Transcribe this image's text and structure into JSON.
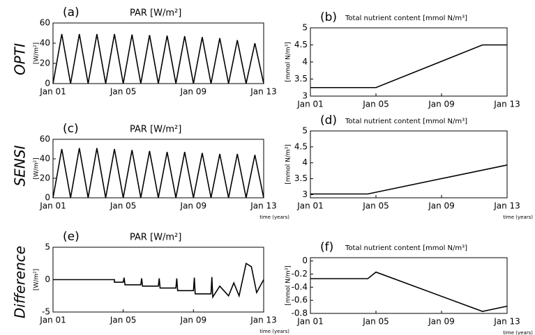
{
  "row_labels": [
    "OPTI",
    "SENSI",
    "Difference"
  ],
  "chart_data": [
    {
      "type": "line",
      "panel": "(a)",
      "title": "PAR [W/m²]",
      "ylabel": "[W/m²]",
      "x": [
        0,
        0.25,
        0.5,
        0.75,
        1,
        1.25,
        1.5,
        1.75,
        2,
        2.25,
        2.5,
        2.75,
        3,
        3.25,
        3.5,
        3.75,
        4,
        4.25,
        4.5,
        4.75,
        5,
        5.25,
        5.5,
        5.75,
        6,
        6.25,
        6.5,
        6.75,
        7,
        7.25,
        7.5,
        7.75,
        8,
        8.25,
        8.5,
        8.75,
        9,
        9.25,
        9.5,
        9.75,
        10,
        10.25,
        10.5,
        10.75,
        11,
        11.25,
        11.5,
        11.75,
        12
      ],
      "values": [
        0,
        24.5,
        49,
        24.5,
        0,
        24.5,
        49,
        24.5,
        0,
        24.5,
        49,
        24.5,
        0,
        24.5,
        49,
        24.5,
        0,
        24.25,
        48.5,
        24.25,
        0,
        24,
        48,
        24,
        0,
        23.75,
        47.5,
        23.75,
        0,
        23.5,
        47,
        23.5,
        0,
        23,
        46,
        23,
        0,
        22.5,
        45,
        22.5,
        0,
        21.5,
        43,
        21.5,
        0,
        20,
        40,
        20,
        0
      ],
      "color": "#000000",
      "xlim": [
        0,
        12
      ],
      "ylim": [
        0,
        60
      ],
      "yticks": [
        0,
        20,
        40,
        60
      ],
      "xticks": [
        {
          "value": 0,
          "label": "Jan 01"
        },
        {
          "value": 4,
          "label": "Jan 05"
        },
        {
          "value": 8,
          "label": "Jan 09"
        },
        {
          "value": 12,
          "label": "Jan 13"
        }
      ]
    },
    {
      "type": "line",
      "panel": "(b)",
      "title": "Total nutrient content [mmol N/m³]",
      "ylabel": "[mmol N/m³]",
      "x": [
        0,
        4,
        10.5,
        12
      ],
      "values": [
        3.25,
        3.25,
        4.5,
        4.5
      ],
      "color": "#000000",
      "xlim": [
        0,
        12
      ],
      "ylim": [
        3,
        5
      ],
      "yticks": [
        3,
        3.5,
        4,
        4.5,
        5
      ],
      "xticks": [
        {
          "value": 0,
          "label": "Jan 01"
        },
        {
          "value": 4,
          "label": "Jan 05"
        },
        {
          "value": 8,
          "label": "Jan 09"
        },
        {
          "value": 12,
          "label": "Jan 13"
        }
      ]
    },
    {
      "type": "line",
      "panel": "(c)",
      "title": "PAR [W/m²]",
      "ylabel": "[W/m²]",
      "xlabel": "time (years)",
      "x": [
        0,
        0.25,
        0.5,
        0.75,
        1,
        1.25,
        1.5,
        1.75,
        2,
        2.25,
        2.5,
        2.75,
        3,
        3.25,
        3.5,
        3.75,
        4,
        4.25,
        4.5,
        4.75,
        5,
        5.25,
        5.5,
        5.75,
        6,
        6.25,
        6.5,
        6.75,
        7,
        7.25,
        7.5,
        7.75,
        8,
        8.25,
        8.5,
        8.75,
        9,
        9.25,
        9.5,
        9.75,
        10,
        10.25,
        10.5,
        10.75,
        11,
        11.25,
        11.5,
        11.75,
        12
      ],
      "values": [
        0,
        25,
        50,
        25,
        0,
        25.5,
        51,
        25.5,
        0,
        25.5,
        51,
        25.5,
        0,
        25,
        50,
        25,
        0,
        24.5,
        49,
        24.5,
        0,
        24,
        48,
        24,
        0,
        23.5,
        47,
        23.5,
        0,
        23.5,
        47,
        23.5,
        0,
        23,
        46,
        23,
        0,
        22.5,
        45,
        22.5,
        0,
        22.5,
        45,
        22.5,
        0,
        22,
        44,
        22,
        0
      ],
      "color": "#000000",
      "xlim": [
        0,
        12
      ],
      "ylim": [
        0,
        60
      ],
      "yticks": [
        0,
        20,
        40,
        60
      ],
      "xticks": [
        {
          "value": 0,
          "label": "Jan 01"
        },
        {
          "value": 4,
          "label": "Jan 05"
        },
        {
          "value": 8,
          "label": "Jan 09"
        },
        {
          "value": 12,
          "label": "Jan 13"
        }
      ]
    },
    {
      "type": "line",
      "panel": "(d)",
      "title": "Total nutrient content [mmol N/m³]",
      "ylabel": "[mmol N/m³]",
      "xlabel": "time (years)",
      "x": [
        0,
        3.5,
        12
      ],
      "values": [
        3.02,
        3.02,
        3.93
      ],
      "color": "#000000",
      "xlim": [
        0,
        12
      ],
      "ylim": [
        2.9,
        5
      ],
      "yticks": [
        3,
        3.5,
        4,
        4.5,
        5
      ],
      "xticks": [
        {
          "value": 0,
          "label": "Jan 01"
        },
        {
          "value": 4,
          "label": "Jan 05"
        },
        {
          "value": 8,
          "label": "Jan 09"
        },
        {
          "value": 12,
          "label": "Jan 13"
        }
      ]
    },
    {
      "type": "line",
      "panel": "(e)",
      "title": "PAR [W/m²]",
      "ylabel": "[W/m²]",
      "xlabel": "time (years)",
      "x": [
        0,
        3.5,
        3.5,
        4,
        4.05,
        4.1,
        5,
        5.05,
        5.1,
        6,
        6.05,
        6.1,
        7,
        7.05,
        7.1,
        8,
        8.05,
        8.1,
        9,
        9.05,
        9.1,
        9.5,
        10,
        10.3,
        10.6,
        11,
        11.3,
        11.6,
        12
      ],
      "values": [
        0,
        0,
        -0.4,
        -0.4,
        0.3,
        -0.8,
        -0.8,
        0.2,
        -1.0,
        -1.0,
        0.2,
        -1.3,
        -1.3,
        0.2,
        -1.7,
        -1.7,
        0.3,
        -2.2,
        -2.2,
        0.4,
        -2.7,
        -1.0,
        -2.5,
        -0.5,
        -2.5,
        2.5,
        2.0,
        -2.0,
        0
      ],
      "color": "#000000",
      "xlim": [
        0,
        12
      ],
      "ylim": [
        -5,
        5
      ],
      "yticks": [
        -5,
        0,
        5
      ],
      "xticks": [
        {
          "value": 0,
          "label": "Jan 01"
        },
        {
          "value": 4,
          "label": "Jan 05"
        },
        {
          "value": 8,
          "label": "Jan 09"
        },
        {
          "value": 12,
          "label": "Jan 13"
        }
      ]
    },
    {
      "type": "line",
      "panel": "(f)",
      "title": "Total nutrient content [mmol N/m³]",
      "ylabel": "[mmol N/m³]",
      "xlabel": "time (years)",
      "x": [
        0,
        3.5,
        4,
        10.5,
        12
      ],
      "values": [
        -0.27,
        -0.27,
        -0.17,
        -0.77,
        -0.69
      ],
      "color": "#000000",
      "xlim": [
        0,
        12
      ],
      "ylim": [
        -0.8,
        0.05
      ],
      "yticks": [
        0,
        -0.2,
        -0.4,
        -0.6,
        -0.8
      ],
      "xticks": [
        {
          "value": 0,
          "label": "Jan 01"
        },
        {
          "value": 4,
          "label": "Jan 05"
        },
        {
          "value": 8,
          "label": "Jan 09"
        },
        {
          "value": 12,
          "label": "Jan 13"
        }
      ]
    }
  ]
}
